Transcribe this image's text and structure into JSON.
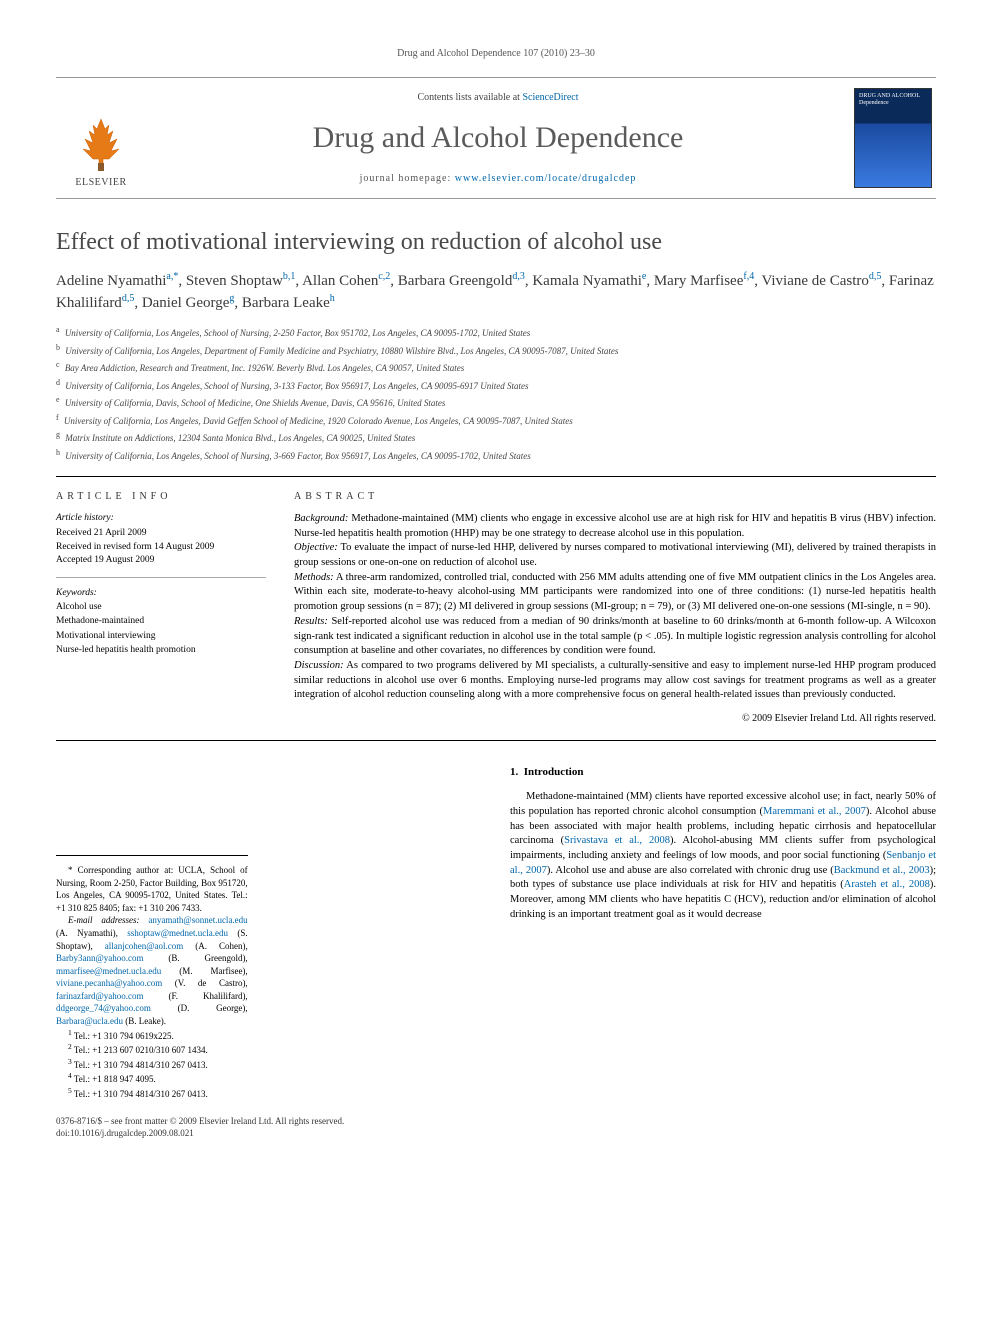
{
  "running_head": "Drug and Alcohol Dependence 107 (2010) 23–30",
  "masthead": {
    "contents_prefix": "Contents lists available at ",
    "contents_link": "ScienceDirect",
    "journal_name": "Drug and Alcohol Dependence",
    "homepage_prefix": "journal homepage: ",
    "homepage_url": "www.elsevier.com/locate/drugalcdep",
    "publisher_label": "ELSEVIER",
    "cover_text": "DRUG AND ALCOHOL Dependence"
  },
  "article": {
    "title": "Effect of motivational interviewing on reduction of alcohol use",
    "authors_html": "Adeline Nyamathi<sup>a,*</sup>, Steven Shoptaw<sup>b,1</sup>, Allan Cohen<sup>c,2</sup>, Barbara Greengold<sup>d,3</sup>, Kamala Nyamathi<sup>e</sup>, Mary Marfisee<sup>f,4</sup>, Viviane de Castro<sup>d,5</sup>, Farinaz Khalilifard<sup>d,5</sup>, Daniel George<sup>g</sup>, Barbara Leake<sup>h</sup>",
    "affiliations": [
      {
        "key": "a",
        "text": "University of California, Los Angeles, School of Nursing, 2-250 Factor, Box 951702, Los Angeles, CA 90095-1702, United States"
      },
      {
        "key": "b",
        "text": "University of California, Los Angeles, Department of Family Medicine and Psychiatry, 10880 Wilshire Blvd., Los Angeles, CA 90095-7087, United States"
      },
      {
        "key": "c",
        "text": "Bay Area Addiction, Research and Treatment, Inc. 1926W. Beverly Blvd. Los Angeles, CA 90057, United States"
      },
      {
        "key": "d",
        "text": "University of California, Los Angeles, School of Nursing, 3-133 Factor, Box 956917, Los Angeles, CA 90095-6917 United States"
      },
      {
        "key": "e",
        "text": "University of California, Davis, School of Medicine, One Shields Avenue, Davis, CA 95616, United States"
      },
      {
        "key": "f",
        "text": "University of California, Los Angeles, David Geffen School of Medicine, 1920 Colorado Avenue, Los Angeles, CA 90095-7087, United States"
      },
      {
        "key": "g",
        "text": "Matrix Institute on Addictions, 12304 Santa Monica Blvd., Los Angeles, CA 90025, United States"
      },
      {
        "key": "h",
        "text": "University of California, Los Angeles, School of Nursing, 3-669 Factor, Box 956917, Los Angeles, CA 90095-1702, United States"
      }
    ]
  },
  "info": {
    "heading": "article info",
    "history_label": "Article history:",
    "history": [
      "Received 21 April 2009",
      "Received in revised form 14 August 2009",
      "Accepted 19 August 2009"
    ],
    "keywords_label": "Keywords:",
    "keywords": [
      "Alcohol use",
      "Methadone-maintained",
      "Motivational interviewing",
      "Nurse-led hepatitis health promotion"
    ]
  },
  "abstract": {
    "heading": "abstract",
    "sections": [
      {
        "label": "Background:",
        "text": "Methadone-maintained (MM) clients who engage in excessive alcohol use are at high risk for HIV and hepatitis B virus (HBV) infection. Nurse-led hepatitis health promotion (HHP) may be one strategy to decrease alcohol use in this population."
      },
      {
        "label": "Objective:",
        "text": "To evaluate the impact of nurse-led HHP, delivered by nurses compared to motivational interviewing (MI), delivered by trained therapists in group sessions or one-on-one on reduction of alcohol use."
      },
      {
        "label": "Methods:",
        "text": "A three-arm randomized, controlled trial, conducted with 256 MM adults attending one of five MM outpatient clinics in the Los Angeles area. Within each site, moderate-to-heavy alcohol-using MM participants were randomized into one of three conditions: (1) nurse-led hepatitis health promotion group sessions (n = 87); (2) MI delivered in group sessions (MI-group; n = 79), or (3) MI delivered one-on-one sessions (MI-single, n = 90)."
      },
      {
        "label": "Results:",
        "text": "Self-reported alcohol use was reduced from a median of 90 drinks/month at baseline to 60 drinks/month at 6-month follow-up. A Wilcoxon sign-rank test indicated a significant reduction in alcohol use in the total sample (p < .05). In multiple logistic regression analysis controlling for alcohol consumption at baseline and other covariates, no differences by condition were found."
      },
      {
        "label": "Discussion:",
        "text": "As compared to two programs delivered by MI specialists, a culturally-sensitive and easy to implement nurse-led HHP program produced similar reductions in alcohol use over 6 months. Employing nurse-led programs may allow cost savings for treatment programs as well as a greater integration of alcohol reduction counseling along with a more comprehensive focus on general health-related issues than previously conducted."
      }
    ],
    "copyright": "© 2009 Elsevier Ireland Ltd. All rights reserved."
  },
  "body": {
    "section_number": "1.",
    "section_title": "Introduction",
    "intro_html": "Methadone-maintained (MM) clients have reported excessive alcohol use; in fact, nearly 50% of this population has reported chronic alcohol consumption (<a href='#'>Maremmani et al., 2007</a>). Alcohol abuse has been associated with major health problems, including hepatic cirrhosis and hepatocellular carcinoma (<a href='#'>Srivastava et al., 2008</a>). Alcohol-abusing MM clients suffer from psychological impairments, including anxiety and feelings of low moods, and poor social functioning (<a href='#'>Senbanjo et al., 2007</a>). Alcohol use and abuse are also correlated with chronic drug use (<a href='#'>Backmund et al., 2003</a>); both types of substance use place individuals at risk for HIV and hepatitis (<a href='#'>Arasteh et al., 2008</a>). Moreover, among MM clients who have hepatitis C (HCV), reduction and/or elimination of alcohol drinking is an important treatment goal as it would decrease"
  },
  "footnotes": {
    "corresponding": "* Corresponding author at: UCLA, School of Nursing, Room 2-250, Factor Building, Box 951720, Los Angeles, CA 90095-1702, United States. Tel.: +1 310 825 8405; fax: +1 310 206 7433.",
    "emails_label": "E-mail addresses:",
    "emails": [
      {
        "addr": "anyamath@sonnet.ucla.edu",
        "who": "(A. Nyamathi)"
      },
      {
        "addr": "sshoptaw@mednet.ucla.edu",
        "who": "(S. Shoptaw)"
      },
      {
        "addr": "allanjcohen@aol.com",
        "who": "(A. Cohen)"
      },
      {
        "addr": "Barby3ann@yahoo.com",
        "who": "(B. Greengold)"
      },
      {
        "addr": "mmarfisee@mednet.ucla.edu",
        "who": "(M. Marfisee)"
      },
      {
        "addr": "viviane.pecanha@yahoo.com",
        "who": "(V. de Castro)"
      },
      {
        "addr": "farinazfard@yahoo.com",
        "who": "(F. Khalilifard)"
      },
      {
        "addr": "ddgeorge_74@yahoo.com",
        "who": "(D. George)"
      },
      {
        "addr": "Barbara@ucla.edu",
        "who": "(B. Leake)"
      }
    ],
    "tels": [
      {
        "key": "1",
        "text": "Tel.: +1 310 794 0619x225."
      },
      {
        "key": "2",
        "text": "Tel.: +1 213 607 0210/310 607 1434."
      },
      {
        "key": "3",
        "text": "Tel.: +1 310 794 4814/310 267 0413."
      },
      {
        "key": "4",
        "text": "Tel.: +1 818 947 4095."
      },
      {
        "key": "5",
        "text": "Tel.: +1 310 794 4814/310 267 0413."
      }
    ]
  },
  "doi": {
    "line1": "0376-8716/$ – see front matter © 2009 Elsevier Ireland Ltd. All rights reserved.",
    "line2": "doi:10.1016/j.drugalcdep.2009.08.021"
  }
}
